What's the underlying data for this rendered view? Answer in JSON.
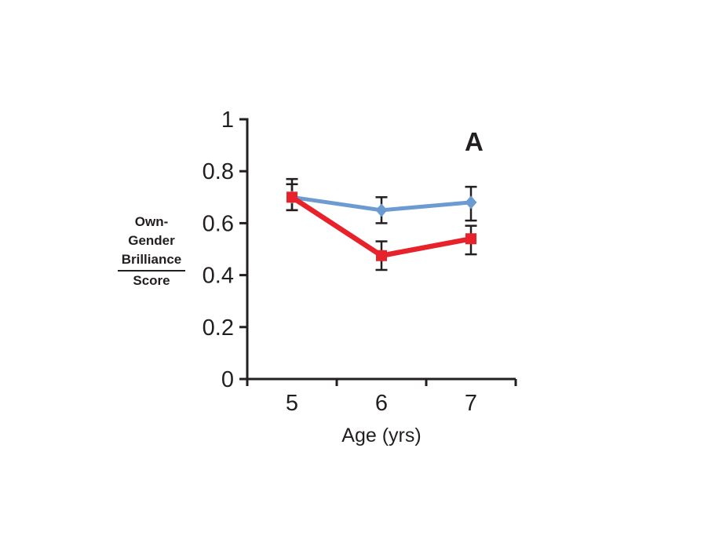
{
  "panel_label": "A",
  "ylabel_display": {
    "lines": [
      "Own-",
      "Gender",
      "Brilliance",
      "Score"
    ],
    "fraction_bar_between": "Brilliance over Score"
  },
  "colors": {
    "background": "#FFFFFF",
    "text": "#231F20",
    "blue_series": "#6C9BD2",
    "red_series": "#E8222A"
  },
  "chart_data": {
    "type": "line",
    "title": "",
    "xlabel": "Age (yrs)",
    "ylabel": "Own-Gender Brilliance Score",
    "categories": [
      "5",
      "6",
      "7"
    ],
    "yticks": [
      0,
      0.2,
      0.4,
      0.6,
      0.8,
      1
    ],
    "yticklabels": [
      "0",
      "0.2",
      "0.4",
      "0.6",
      "0.8",
      "1"
    ],
    "ylim": [
      0,
      1
    ],
    "grid": false,
    "legend": "none",
    "error_bars": true,
    "axis_color": "#231F20",
    "error_bar_color": "#231F20",
    "series": [
      {
        "id": "blue-diamond",
        "marker": "diamond",
        "color": "#6C9BD2",
        "line_width": 5,
        "values": [
          0.7,
          0.65,
          0.68
        ],
        "error_low": [
          0.05,
          0.05,
          0.07
        ],
        "error_high": [
          0.07,
          0.05,
          0.06
        ]
      },
      {
        "id": "red-square",
        "marker": "square",
        "color": "#E8222A",
        "line_width": 6.5,
        "values": [
          0.7,
          0.475,
          0.54
        ],
        "error_low": [
          0.05,
          0.055,
          0.06
        ],
        "error_high": [
          0.05,
          0.055,
          0.05
        ]
      }
    ]
  }
}
